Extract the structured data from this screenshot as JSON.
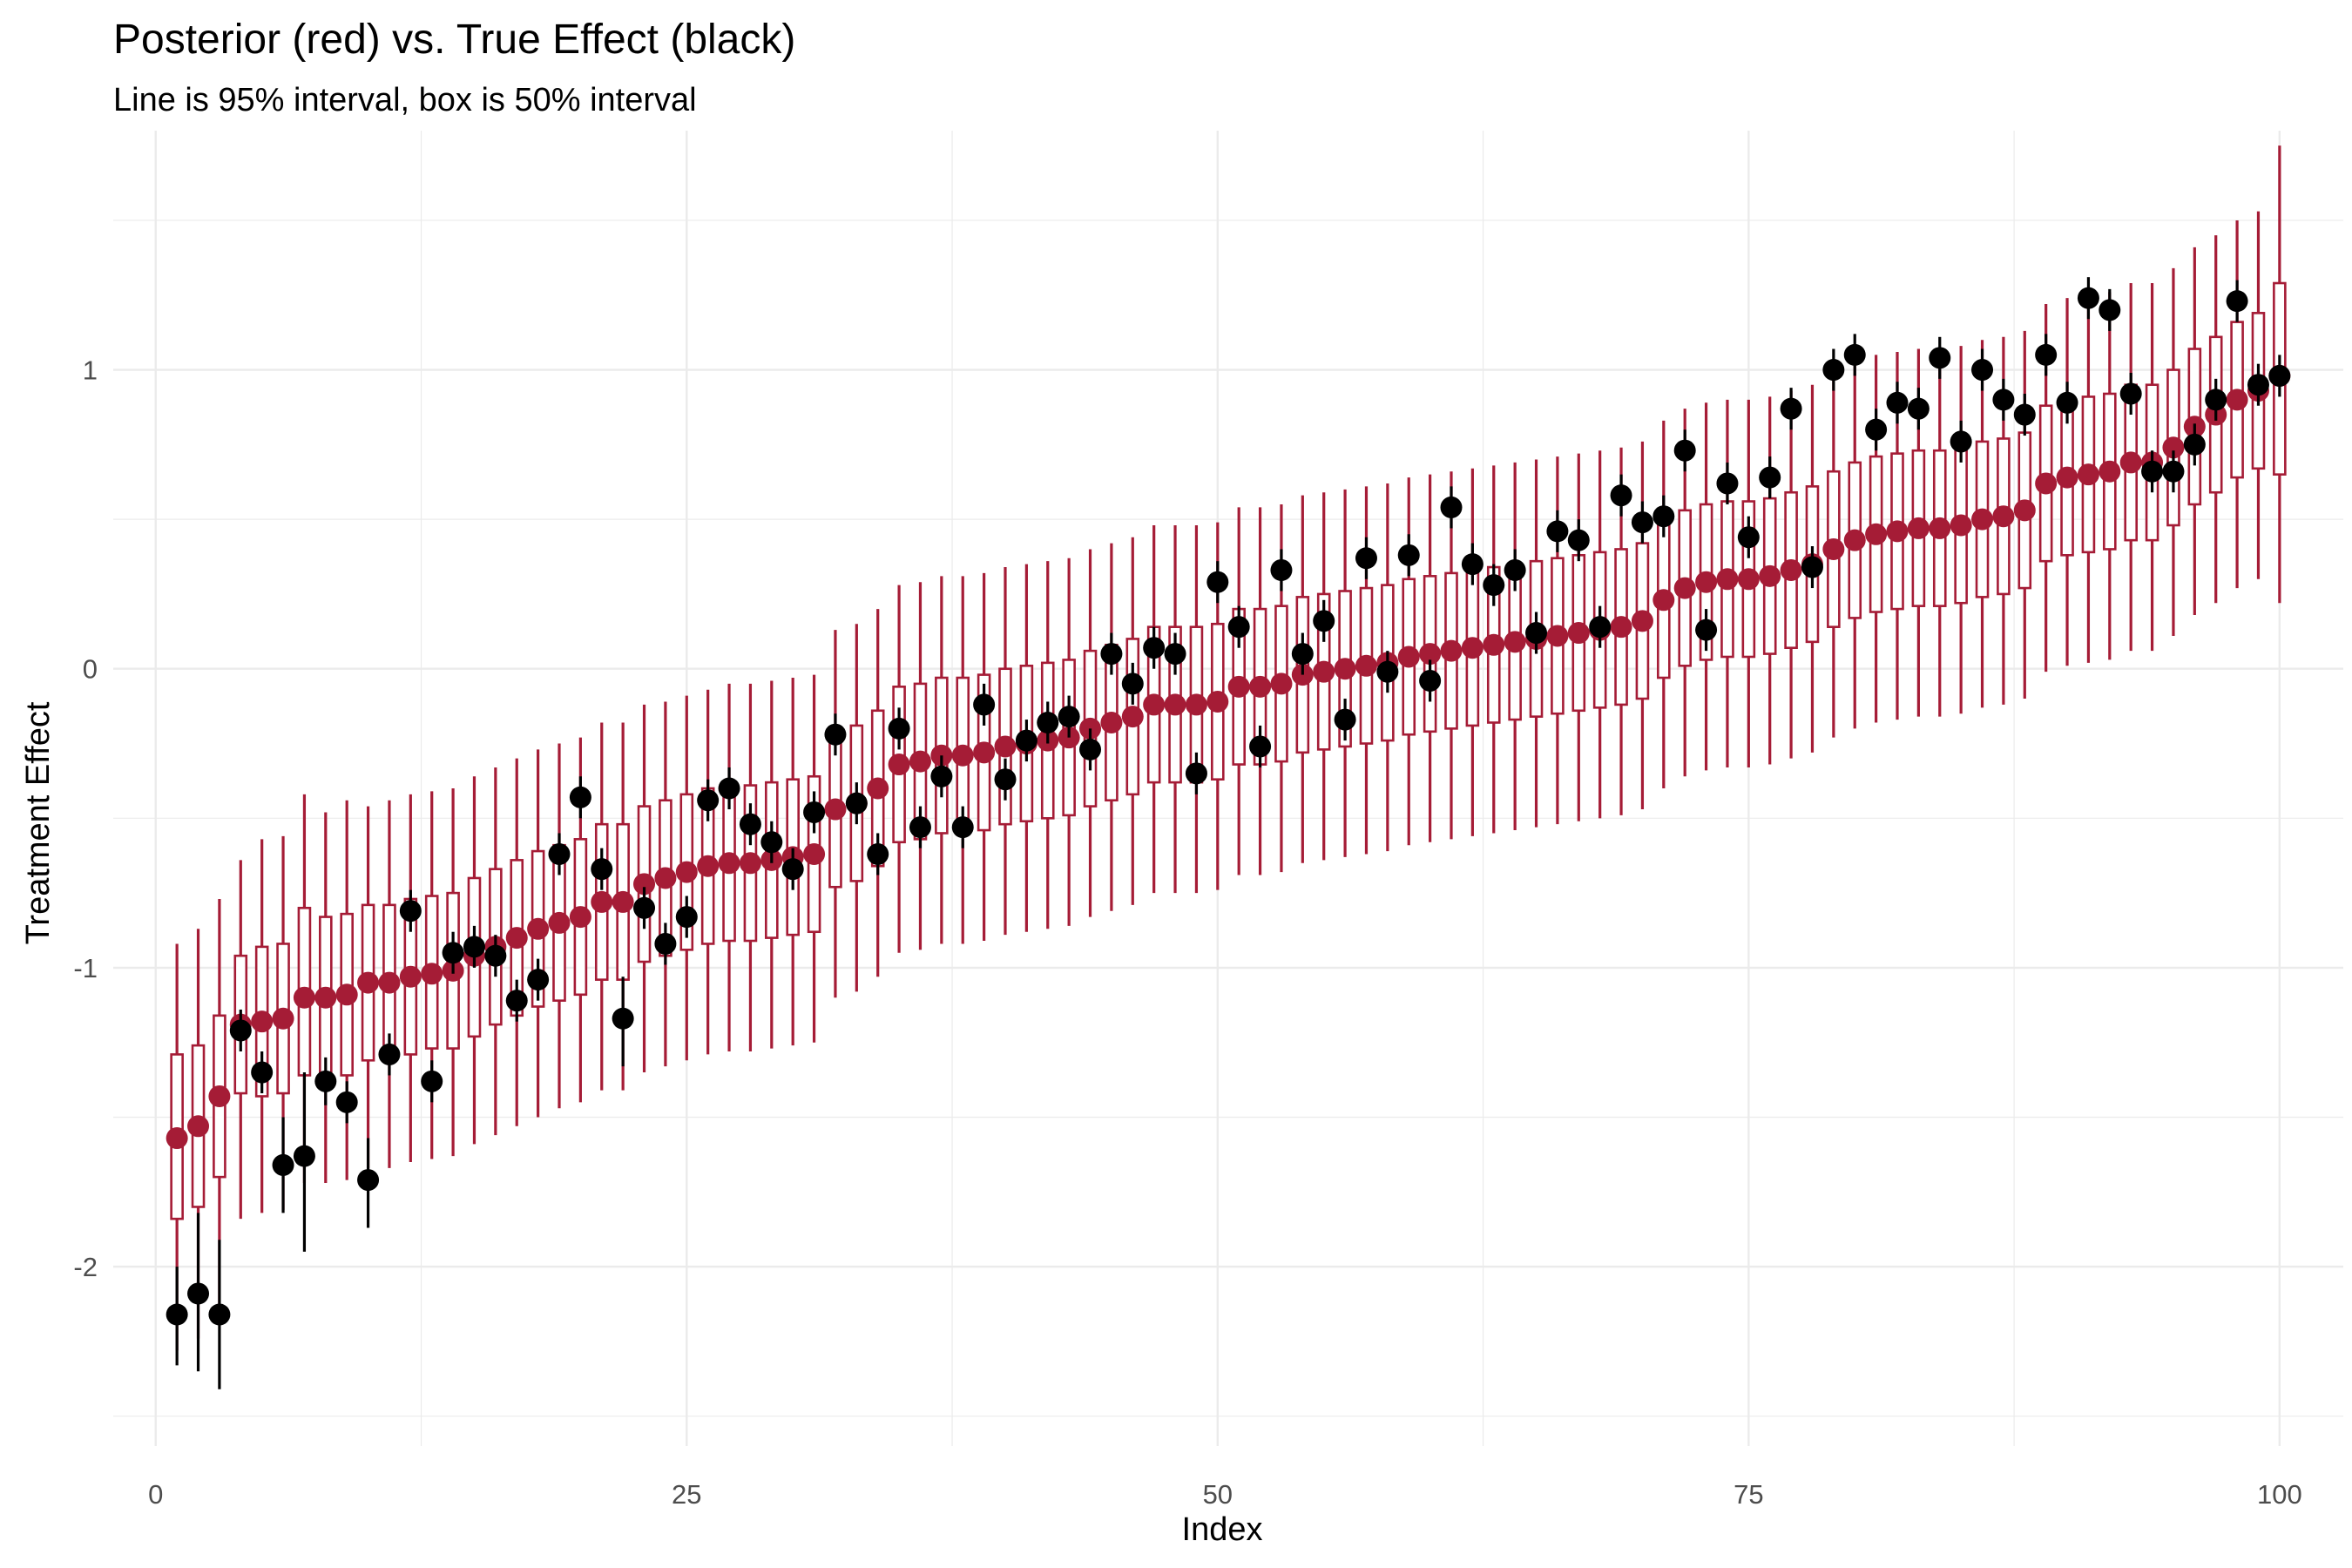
{
  "chart_data": {
    "type": "scatter",
    "title": "Posterior (red) vs. True Effect (black)",
    "subtitle": "Line is 95% interval, box is 50% interval",
    "xlabel": "Index",
    "ylabel": "Treatment Effect",
    "xlim": [
      -2,
      103
    ],
    "ylim": [
      -2.6,
      1.8
    ],
    "x_ticks": [
      0,
      25,
      50,
      75,
      100
    ],
    "y_ticks": [
      -2,
      -1,
      0,
      1
    ],
    "grid": true,
    "colors": {
      "posterior": "#A51C36",
      "true_effect": "#000000",
      "grid": "#EBEBEB"
    },
    "posterior": {
      "name": "Posterior",
      "median": [
        -1.57,
        -1.53,
        -1.43,
        -1.19,
        -1.18,
        -1.17,
        -1.1,
        -1.1,
        -1.09,
        -1.05,
        -1.05,
        -1.03,
        -1.02,
        -1.01,
        -0.96,
        -0.93,
        -0.9,
        -0.87,
        -0.85,
        -0.83,
        -0.78,
        -0.78,
        -0.72,
        -0.7,
        -0.68,
        -0.66,
        -0.65,
        -0.65,
        -0.64,
        -0.63,
        -0.62,
        -0.47,
        -0.45,
        -0.4,
        -0.32,
        -0.31,
        -0.29,
        -0.29,
        -0.28,
        -0.26,
        -0.25,
        -0.24,
        -0.23,
        -0.2,
        -0.18,
        -0.16,
        -0.12,
        -0.12,
        -0.12,
        -0.11,
        -0.06,
        -0.06,
        -0.05,
        -0.02,
        -0.01,
        0.0,
        0.01,
        0.02,
        0.04,
        0.05,
        0.06,
        0.07,
        0.08,
        0.09,
        0.1,
        0.11,
        0.12,
        0.13,
        0.14,
        0.16,
        0.23,
        0.27,
        0.29,
        0.3,
        0.3,
        0.31,
        0.33,
        0.35,
        0.4,
        0.43,
        0.45,
        0.46,
        0.47,
        0.47,
        0.48,
        0.5,
        0.51,
        0.53,
        0.62,
        0.64,
        0.65,
        0.66,
        0.69,
        0.69,
        0.74,
        0.81,
        0.85,
        0.9,
        0.93,
        0.98
      ],
      "q25": [
        -1.84,
        -1.8,
        -1.7,
        -1.42,
        -1.43,
        -1.42,
        -1.36,
        -1.37,
        -1.36,
        -1.31,
        -1.31,
        -1.29,
        -1.27,
        -1.27,
        -1.23,
        -1.19,
        -1.16,
        -1.13,
        -1.11,
        -1.09,
        -1.04,
        -1.04,
        -0.98,
        -0.96,
        -0.94,
        -0.92,
        -0.91,
        -0.91,
        -0.9,
        -0.89,
        -0.88,
        -0.73,
        -0.71,
        -0.66,
        -0.58,
        -0.57,
        -0.55,
        -0.55,
        -0.54,
        -0.52,
        -0.51,
        -0.5,
        -0.49,
        -0.46,
        -0.44,
        -0.42,
        -0.38,
        -0.38,
        -0.38,
        -0.37,
        -0.32,
        -0.32,
        -0.31,
        -0.28,
        -0.27,
        -0.26,
        -0.25,
        -0.24,
        -0.22,
        -0.21,
        -0.2,
        -0.19,
        -0.18,
        -0.17,
        -0.16,
        -0.15,
        -0.14,
        -0.13,
        -0.12,
        -0.1,
        -0.03,
        0.01,
        0.03,
        0.04,
        0.04,
        0.05,
        0.07,
        0.09,
        0.14,
        0.17,
        0.19,
        0.2,
        0.21,
        0.21,
        0.22,
        0.24,
        0.25,
        0.27,
        0.36,
        0.38,
        0.39,
        0.4,
        0.43,
        0.43,
        0.48,
        0.55,
        0.59,
        0.64,
        0.67,
        0.65
      ],
      "q75": [
        -1.29,
        -1.26,
        -1.16,
        -0.96,
        -0.93,
        -0.92,
        -0.8,
        -0.83,
        -0.82,
        -0.79,
        -0.79,
        -0.77,
        -0.76,
        -0.75,
        -0.7,
        -0.67,
        -0.64,
        -0.61,
        -0.59,
        -0.57,
        -0.52,
        -0.52,
        -0.46,
        -0.44,
        -0.42,
        -0.4,
        -0.39,
        -0.39,
        -0.38,
        -0.37,
        -0.36,
        -0.21,
        -0.19,
        -0.14,
        -0.06,
        -0.05,
        -0.03,
        -0.03,
        -0.02,
        0.0,
        0.01,
        0.02,
        0.03,
        0.06,
        0.08,
        0.1,
        0.14,
        0.14,
        0.14,
        0.15,
        0.2,
        0.2,
        0.21,
        0.24,
        0.25,
        0.26,
        0.27,
        0.28,
        0.3,
        0.31,
        0.32,
        0.33,
        0.34,
        0.35,
        0.36,
        0.37,
        0.38,
        0.39,
        0.4,
        0.42,
        0.49,
        0.53,
        0.55,
        0.56,
        0.56,
        0.57,
        0.59,
        0.61,
        0.66,
        0.69,
        0.71,
        0.72,
        0.73,
        0.73,
        0.74,
        0.76,
        0.77,
        0.79,
        0.88,
        0.9,
        0.91,
        0.92,
        0.95,
        0.95,
        1.0,
        1.07,
        1.11,
        1.16,
        1.19,
        1.29
      ],
      "q025": [
        -2.28,
        -2.24,
        -2.13,
        -1.84,
        -1.82,
        -1.81,
        -1.72,
        -1.72,
        -1.71,
        -1.67,
        -1.67,
        -1.65,
        -1.64,
        -1.63,
        -1.59,
        -1.56,
        -1.53,
        -1.5,
        -1.47,
        -1.45,
        -1.41,
        -1.41,
        -1.35,
        -1.33,
        -1.31,
        -1.29,
        -1.28,
        -1.28,
        -1.27,
        -1.26,
        -1.25,
        -1.1,
        -1.08,
        -1.03,
        -0.95,
        -0.94,
        -0.92,
        -0.92,
        -0.91,
        -0.89,
        -0.88,
        -0.87,
        -0.86,
        -0.83,
        -0.81,
        -0.79,
        -0.75,
        -0.75,
        -0.75,
        -0.74,
        -0.69,
        -0.69,
        -0.68,
        -0.65,
        -0.64,
        -0.63,
        -0.62,
        -0.61,
        -0.59,
        -0.58,
        -0.57,
        -0.56,
        -0.55,
        -0.54,
        -0.53,
        -0.52,
        -0.51,
        -0.5,
        -0.49,
        -0.47,
        -0.4,
        -0.36,
        -0.34,
        -0.33,
        -0.33,
        -0.32,
        -0.3,
        -0.28,
        -0.23,
        -0.2,
        -0.18,
        -0.17,
        -0.16,
        -0.16,
        -0.15,
        -0.13,
        -0.12,
        -0.1,
        -0.01,
        0.01,
        0.02,
        0.03,
        0.06,
        0.06,
        0.11,
        0.18,
        0.22,
        0.27,
        0.3,
        0.22
      ],
      "q975": [
        -0.92,
        -0.87,
        -0.77,
        -0.64,
        -0.57,
        -0.56,
        -0.42,
        -0.48,
        -0.44,
        -0.46,
        -0.44,
        -0.42,
        -0.41,
        -0.4,
        -0.36,
        -0.33,
        -0.3,
        -0.27,
        -0.25,
        -0.23,
        -0.18,
        -0.18,
        -0.12,
        -0.11,
        -0.09,
        -0.07,
        -0.05,
        -0.05,
        -0.04,
        -0.03,
        -0.02,
        0.13,
        0.15,
        0.2,
        0.28,
        0.29,
        0.31,
        0.31,
        0.32,
        0.34,
        0.35,
        0.36,
        0.37,
        0.4,
        0.42,
        0.44,
        0.48,
        0.48,
        0.48,
        0.49,
        0.54,
        0.54,
        0.55,
        0.58,
        0.59,
        0.6,
        0.61,
        0.62,
        0.64,
        0.65,
        0.66,
        0.67,
        0.68,
        0.69,
        0.7,
        0.71,
        0.72,
        0.73,
        0.74,
        0.76,
        0.83,
        0.87,
        0.89,
        0.9,
        0.9,
        0.91,
        0.93,
        0.95,
        1.0,
        1.03,
        1.05,
        1.06,
        1.07,
        1.07,
        1.08,
        1.1,
        1.11,
        1.13,
        1.22,
        1.24,
        1.25,
        1.26,
        1.29,
        1.29,
        1.34,
        1.41,
        1.45,
        1.5,
        1.53,
        1.75
      ]
    },
    "true_effect": {
      "name": "True Effect",
      "values": [
        -2.16,
        -2.09,
        -2.16,
        -1.21,
        -1.35,
        -1.66,
        -1.63,
        -1.38,
        -1.45,
        -1.71,
        -1.29,
        -0.81,
        -1.38,
        -0.95,
        -0.93,
        -0.96,
        -1.11,
        -1.04,
        -0.62,
        -0.43,
        -0.67,
        -1.17,
        -0.8,
        -0.92,
        -0.83,
        -0.44,
        -0.4,
        -0.52,
        -0.58,
        -0.67,
        -0.48,
        -0.22,
        -0.45,
        -0.62,
        -0.2,
        -0.53,
        -0.36,
        -0.53,
        -0.12,
        -0.37,
        -0.24,
        -0.18,
        -0.16,
        -0.27,
        0.05,
        -0.05,
        0.07,
        0.05,
        -0.35,
        0.29,
        0.14,
        -0.26,
        0.33,
        0.05,
        0.16,
        -0.17,
        0.37,
        -0.01,
        0.38,
        -0.04,
        0.54,
        0.35,
        0.28,
        0.33,
        0.12,
        0.46,
        0.43,
        0.14,
        0.58,
        0.49,
        0.51,
        0.73,
        0.13,
        0.62,
        0.44,
        0.64,
        0.87,
        0.34,
        1.0,
        1.05,
        0.8,
        0.89,
        0.87,
        1.04,
        0.76,
        1.0,
        0.9,
        0.85,
        1.05,
        0.89,
        1.24,
        1.2,
        0.92,
        0.66,
        0.66,
        0.75,
        0.9,
        1.23,
        0.95,
        0.98
      ],
      "lower": [
        -2.33,
        -2.35,
        -2.41,
        -1.28,
        -1.42,
        -1.82,
        -1.95,
        -1.46,
        -1.52,
        -1.87,
        -1.36,
        -0.88,
        -1.45,
        -1.02,
        -1.0,
        -1.03,
        -1.18,
        -1.11,
        -0.69,
        -0.5,
        -0.74,
        -1.33,
        -0.87,
        -0.99,
        -0.9,
        -0.51,
        -0.47,
        -0.59,
        -0.65,
        -0.74,
        -0.55,
        -0.29,
        -0.52,
        -0.69,
        -0.27,
        -0.6,
        -0.43,
        -0.6,
        -0.19,
        -0.44,
        -0.31,
        -0.25,
        -0.23,
        -0.34,
        -0.02,
        -0.12,
        0.0,
        -0.02,
        -0.42,
        0.22,
        0.07,
        -0.33,
        0.26,
        -0.02,
        0.09,
        -0.24,
        0.3,
        -0.08,
        0.31,
        -0.11,
        0.47,
        0.28,
        0.21,
        0.26,
        0.05,
        0.39,
        0.36,
        0.07,
        0.51,
        0.42,
        0.44,
        0.66,
        0.06,
        0.55,
        0.37,
        0.57,
        0.8,
        0.27,
        0.93,
        0.98,
        0.73,
        0.82,
        0.8,
        0.97,
        0.69,
        0.93,
        0.83,
        0.78,
        0.98,
        0.82,
        1.17,
        1.13,
        0.85,
        0.59,
        0.59,
        0.68,
        0.83,
        1.16,
        0.88,
        0.91
      ],
      "upper": [
        -2.0,
        -1.82,
        -1.91,
        -1.14,
        -1.28,
        -1.5,
        -1.35,
        -1.3,
        -1.38,
        -1.57,
        -1.22,
        -0.74,
        -1.31,
        -0.88,
        -0.86,
        -0.89,
        -1.04,
        -0.97,
        -0.55,
        -0.36,
        -0.6,
        -1.03,
        -0.73,
        -0.85,
        -0.76,
        -0.37,
        -0.33,
        -0.45,
        -0.51,
        -0.6,
        -0.41,
        -0.15,
        -0.38,
        -0.55,
        -0.13,
        -0.46,
        -0.29,
        -0.46,
        -0.05,
        -0.3,
        -0.17,
        -0.11,
        -0.09,
        -0.2,
        0.12,
        0.02,
        0.14,
        0.12,
        -0.28,
        0.36,
        0.21,
        -0.19,
        0.4,
        0.12,
        0.23,
        -0.1,
        0.44,
        0.06,
        0.45,
        0.03,
        0.61,
        0.42,
        0.35,
        0.4,
        0.19,
        0.53,
        0.5,
        0.21,
        0.65,
        0.56,
        0.58,
        0.8,
        0.2,
        0.69,
        0.51,
        0.71,
        0.94,
        0.41,
        1.07,
        1.12,
        0.87,
        0.96,
        0.94,
        1.11,
        0.83,
        1.07,
        0.97,
        0.92,
        1.12,
        0.96,
        1.31,
        1.27,
        0.99,
        0.73,
        0.73,
        0.82,
        0.97,
        1.3,
        1.02,
        1.05
      ]
    }
  }
}
